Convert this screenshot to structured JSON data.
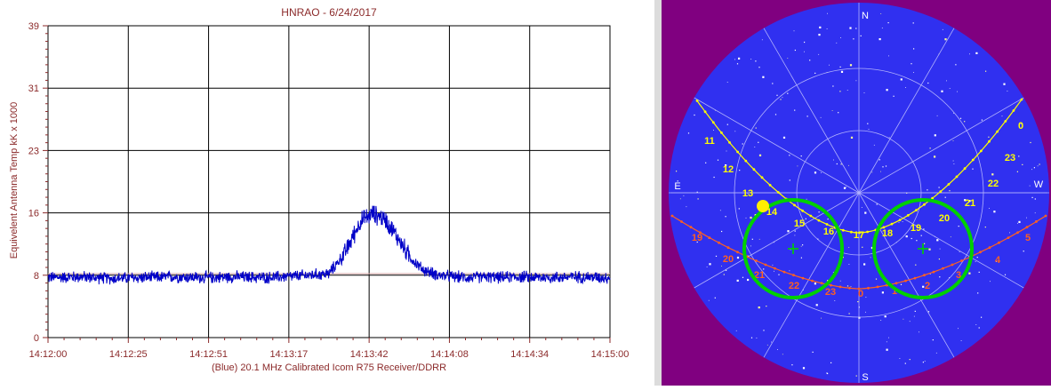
{
  "chart_data": [
    {
      "type": "line",
      "title": "HNRAO - 6/24/2017",
      "ylabel": "Equivelent Antenna Temp kK x 1000",
      "xlabel": "(Blue) 20.1 MHz Calibrated Icom R75 Receiver/DDRR",
      "xlim": [
        "14:12:00",
        "14:15:00"
      ],
      "ylim": [
        0,
        39
      ],
      "x_ticks": [
        "14:12:00",
        "14:12:25",
        "14:12:51",
        "14:13:17",
        "14:13:42",
        "14:14:08",
        "14:14:34",
        "14:15:00"
      ],
      "y_ticks": [
        "0",
        "8",
        "16",
        "23",
        "31",
        "39"
      ],
      "grid": true,
      "reference_line_y": 8,
      "series": [
        {
          "color": "#0000c8",
          "x_seconds": [
            0,
            10,
            20,
            30,
            40,
            50,
            60,
            70,
            80,
            90,
            95,
            100,
            104,
            108,
            112,
            116,
            120,
            125,
            130,
            135,
            140,
            145,
            150,
            160,
            170,
            180
          ],
          "values": [
            7.5,
            7.6,
            7.4,
            7.5,
            7.6,
            7.5,
            7.6,
            7.5,
            7.7,
            8.0,
            10.5,
            14.5,
            15.5,
            14.8,
            12.5,
            10.0,
            8.5,
            7.8,
            7.6,
            7.5,
            7.6,
            7.5,
            7.6,
            7.5,
            7.6,
            7.5
          ],
          "noise_amplitude": 0.6
        }
      ],
      "colors": {
        "line": "#0000c8",
        "labels": "#8b2a2a",
        "grid": "#000000"
      }
    },
    {
      "type": "sky-map",
      "cardinal_labels": {
        "north": "N",
        "south": "S",
        "east": "E",
        "west": "W"
      },
      "jupiter_path_hours": [
        "11",
        "12",
        "13",
        "14",
        "15",
        "16",
        "17",
        "18",
        "19",
        "20",
        "21",
        "22",
        "23",
        "0"
      ],
      "sun_path_hours": [
        "19",
        "20",
        "21",
        "22",
        "23",
        "0",
        "1",
        "2",
        "3",
        "4",
        "5"
      ],
      "colors": {
        "sky": "#3030f0",
        "background": "#800080",
        "jupiter_path": "#ffff00",
        "sun_path": "#ff6020",
        "antenna_beam": "#00d000",
        "sun": "#ffee00"
      }
    }
  ]
}
